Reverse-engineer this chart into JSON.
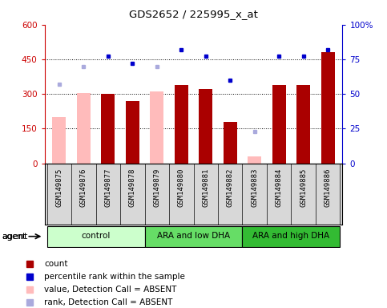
{
  "title": "GDS2652 / 225995_x_at",
  "samples": [
    "GSM149875",
    "GSM149876",
    "GSM149877",
    "GSM149878",
    "GSM149879",
    "GSM149880",
    "GSM149881",
    "GSM149882",
    "GSM149883",
    "GSM149884",
    "GSM149885",
    "GSM149886"
  ],
  "groups": [
    {
      "label": "control",
      "start": 0,
      "end": 3,
      "color": "#ccffcc"
    },
    {
      "label": "ARA and low DHA",
      "start": 4,
      "end": 7,
      "color": "#66dd66"
    },
    {
      "label": "ARA and high DHA",
      "start": 8,
      "end": 11,
      "color": "#33bb33"
    }
  ],
  "count_values": [
    null,
    null,
    300,
    270,
    null,
    340,
    320,
    180,
    null,
    340,
    340,
    480
  ],
  "count_absent": [
    200,
    305,
    null,
    null,
    310,
    null,
    null,
    null,
    30,
    null,
    null,
    null
  ],
  "percentile_values": [
    null,
    null,
    77,
    72,
    null,
    82,
    77,
    60,
    null,
    77,
    77,
    82
  ],
  "percentile_absent": [
    57,
    70,
    null,
    null,
    70,
    null,
    null,
    null,
    null,
    null,
    null,
    null
  ],
  "rank_absent": [
    null,
    null,
    null,
    null,
    null,
    null,
    null,
    null,
    23,
    null,
    null,
    null
  ],
  "ylim_left": [
    0,
    600
  ],
  "ylim_right": [
    0,
    100
  ],
  "yticks_left": [
    0,
    150,
    300,
    450,
    600
  ],
  "yticks_right": [
    0,
    25,
    50,
    75,
    100
  ],
  "ytick_labels_left": [
    "0",
    "150",
    "300",
    "450",
    "600"
  ],
  "ytick_labels_right": [
    "0",
    "25",
    "50",
    "75",
    "100%"
  ],
  "left_axis_color": "#cc0000",
  "right_axis_color": "#0000cc",
  "bar_color": "#aa0000",
  "absent_bar_color": "#ffbbbb",
  "dot_color": "#0000cc",
  "absent_dot_color": "#aaaadd",
  "absent_rank_color": "#aaaadd",
  "background_color": "#d8d8d8",
  "plot_bg": "#ffffff"
}
